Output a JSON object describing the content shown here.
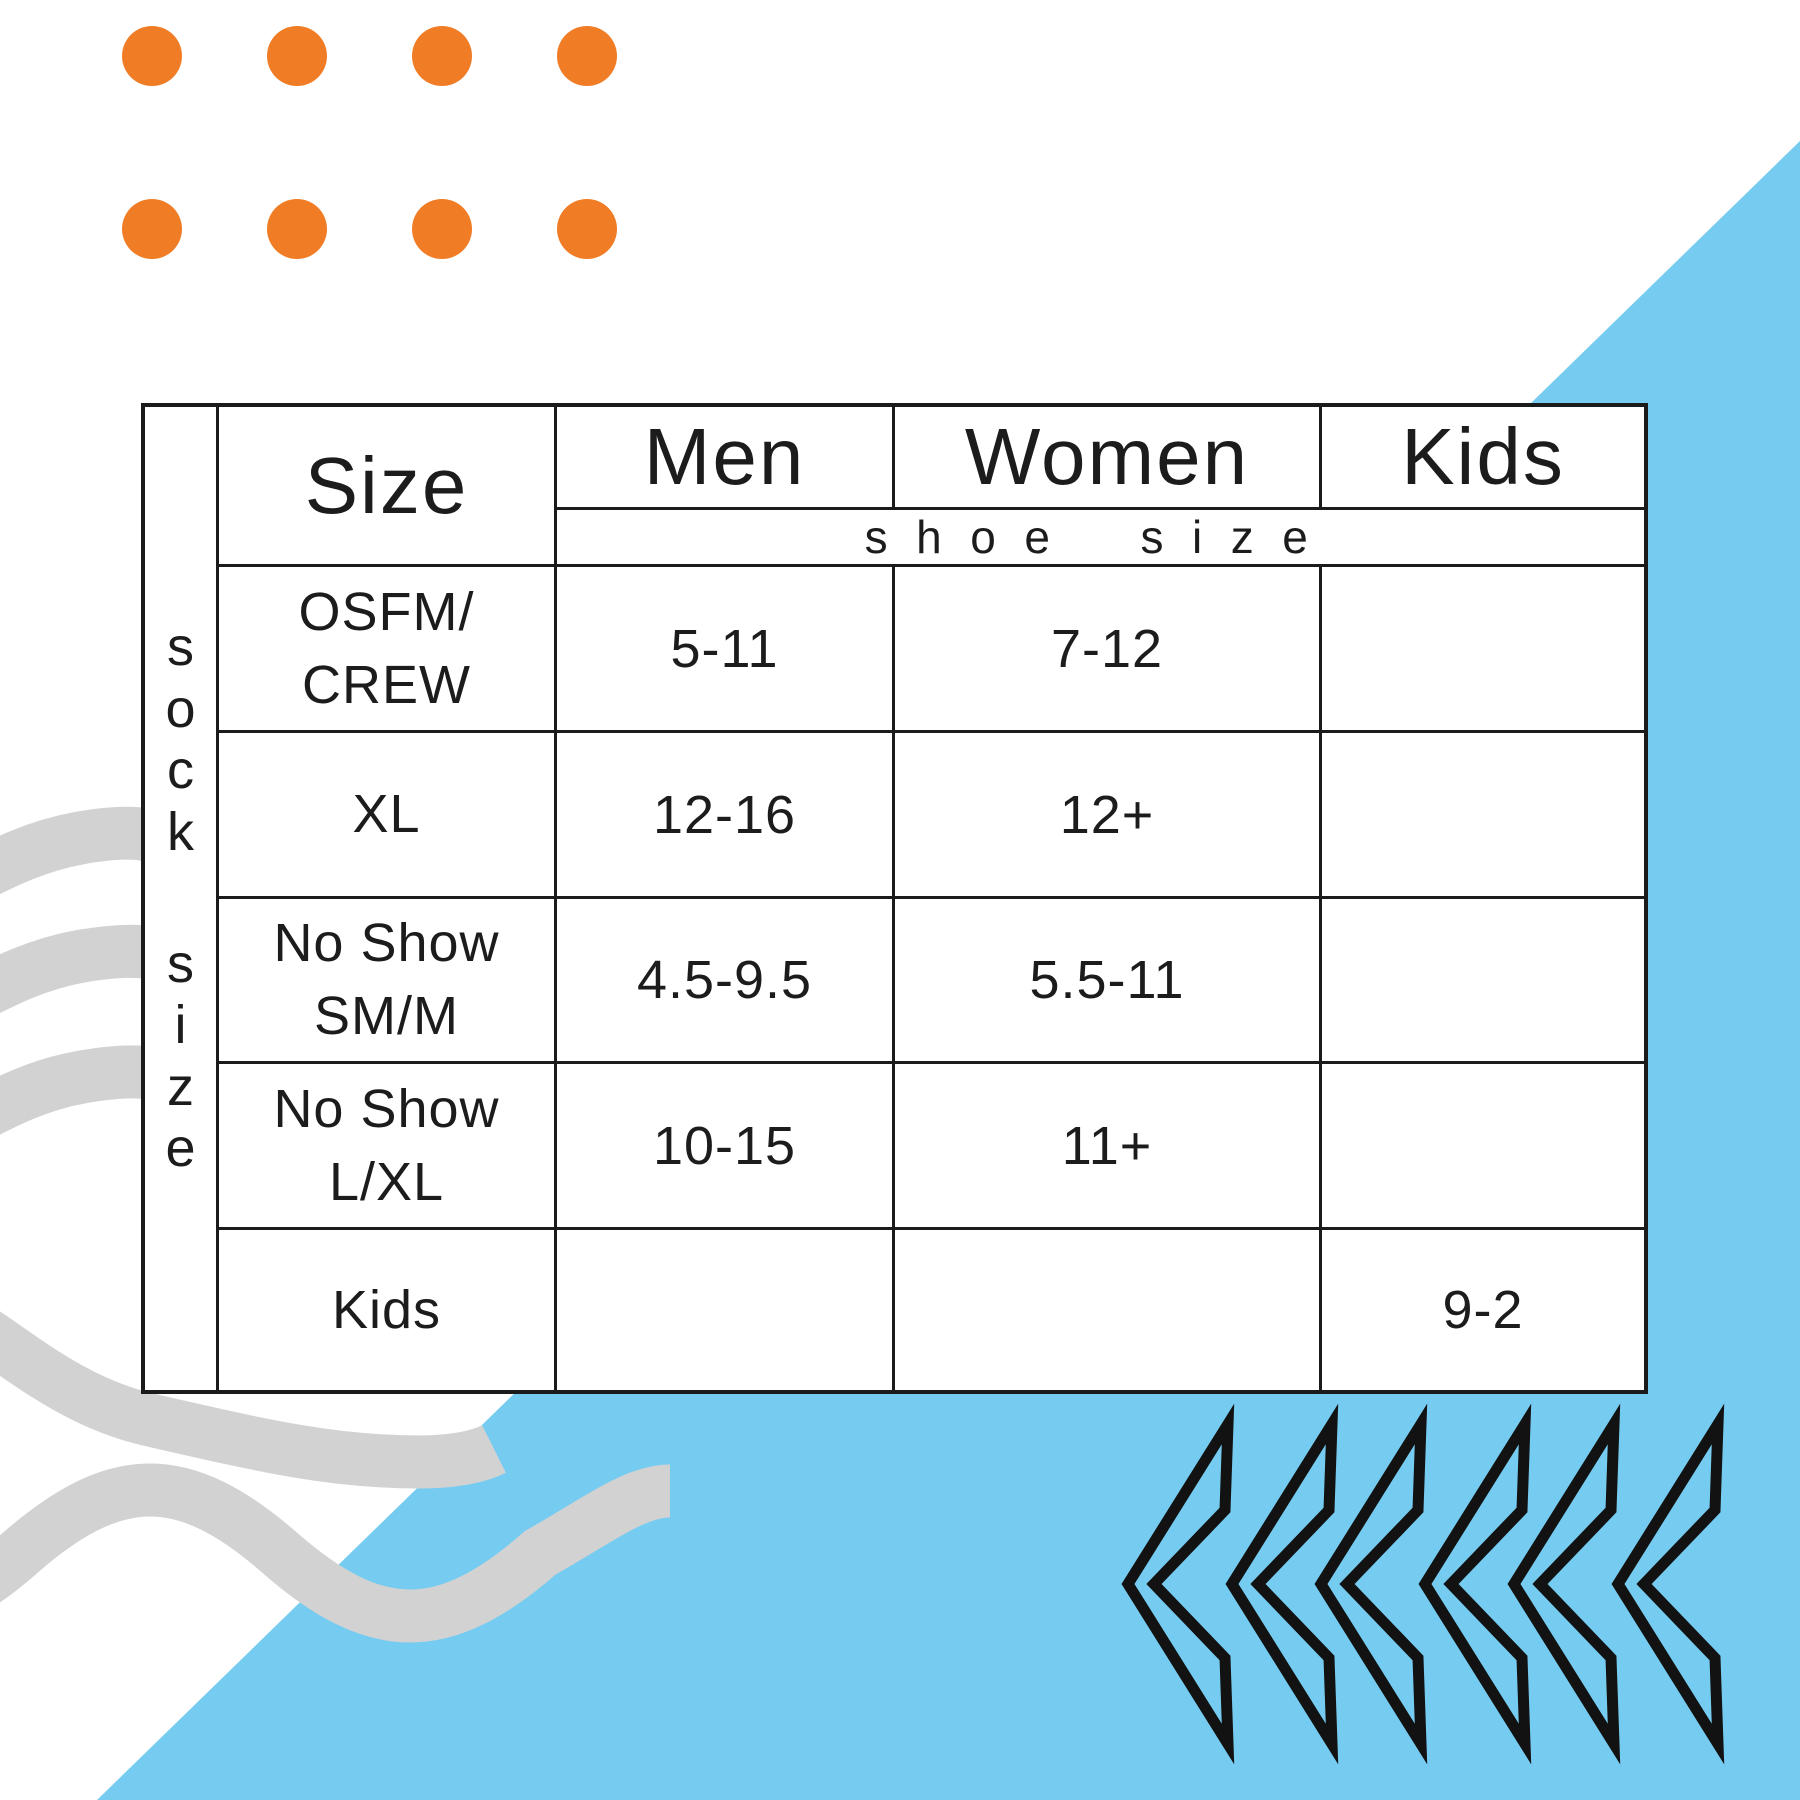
{
  "table": {
    "side_label": "sock size",
    "corner_label": "Size",
    "col_headers": {
      "men": "Men",
      "women": "Women",
      "kids": "Kids"
    },
    "subheader": "shoe size",
    "rows": [
      {
        "size": "OSFM/\nCREW",
        "men": "5-11",
        "women": "7-12",
        "kids": ""
      },
      {
        "size": "XL",
        "men": "12-16",
        "women": "12+",
        "kids": ""
      },
      {
        "size": "No Show\nSM/M",
        "men": "4.5-9.5",
        "women": "5.5-11",
        "kids": ""
      },
      {
        "size": "No Show\nL/XL",
        "men": "10-15",
        "women": "11+",
        "kids": ""
      },
      {
        "size": "Kids",
        "men": "",
        "women": "",
        "kids": "9-2"
      }
    ]
  },
  "decor": {
    "accent_orange": "#F07D26",
    "accent_blue": "#75CCF0",
    "wave_gray": "#D2D2D2",
    "line_black": "#1B1B1B"
  }
}
